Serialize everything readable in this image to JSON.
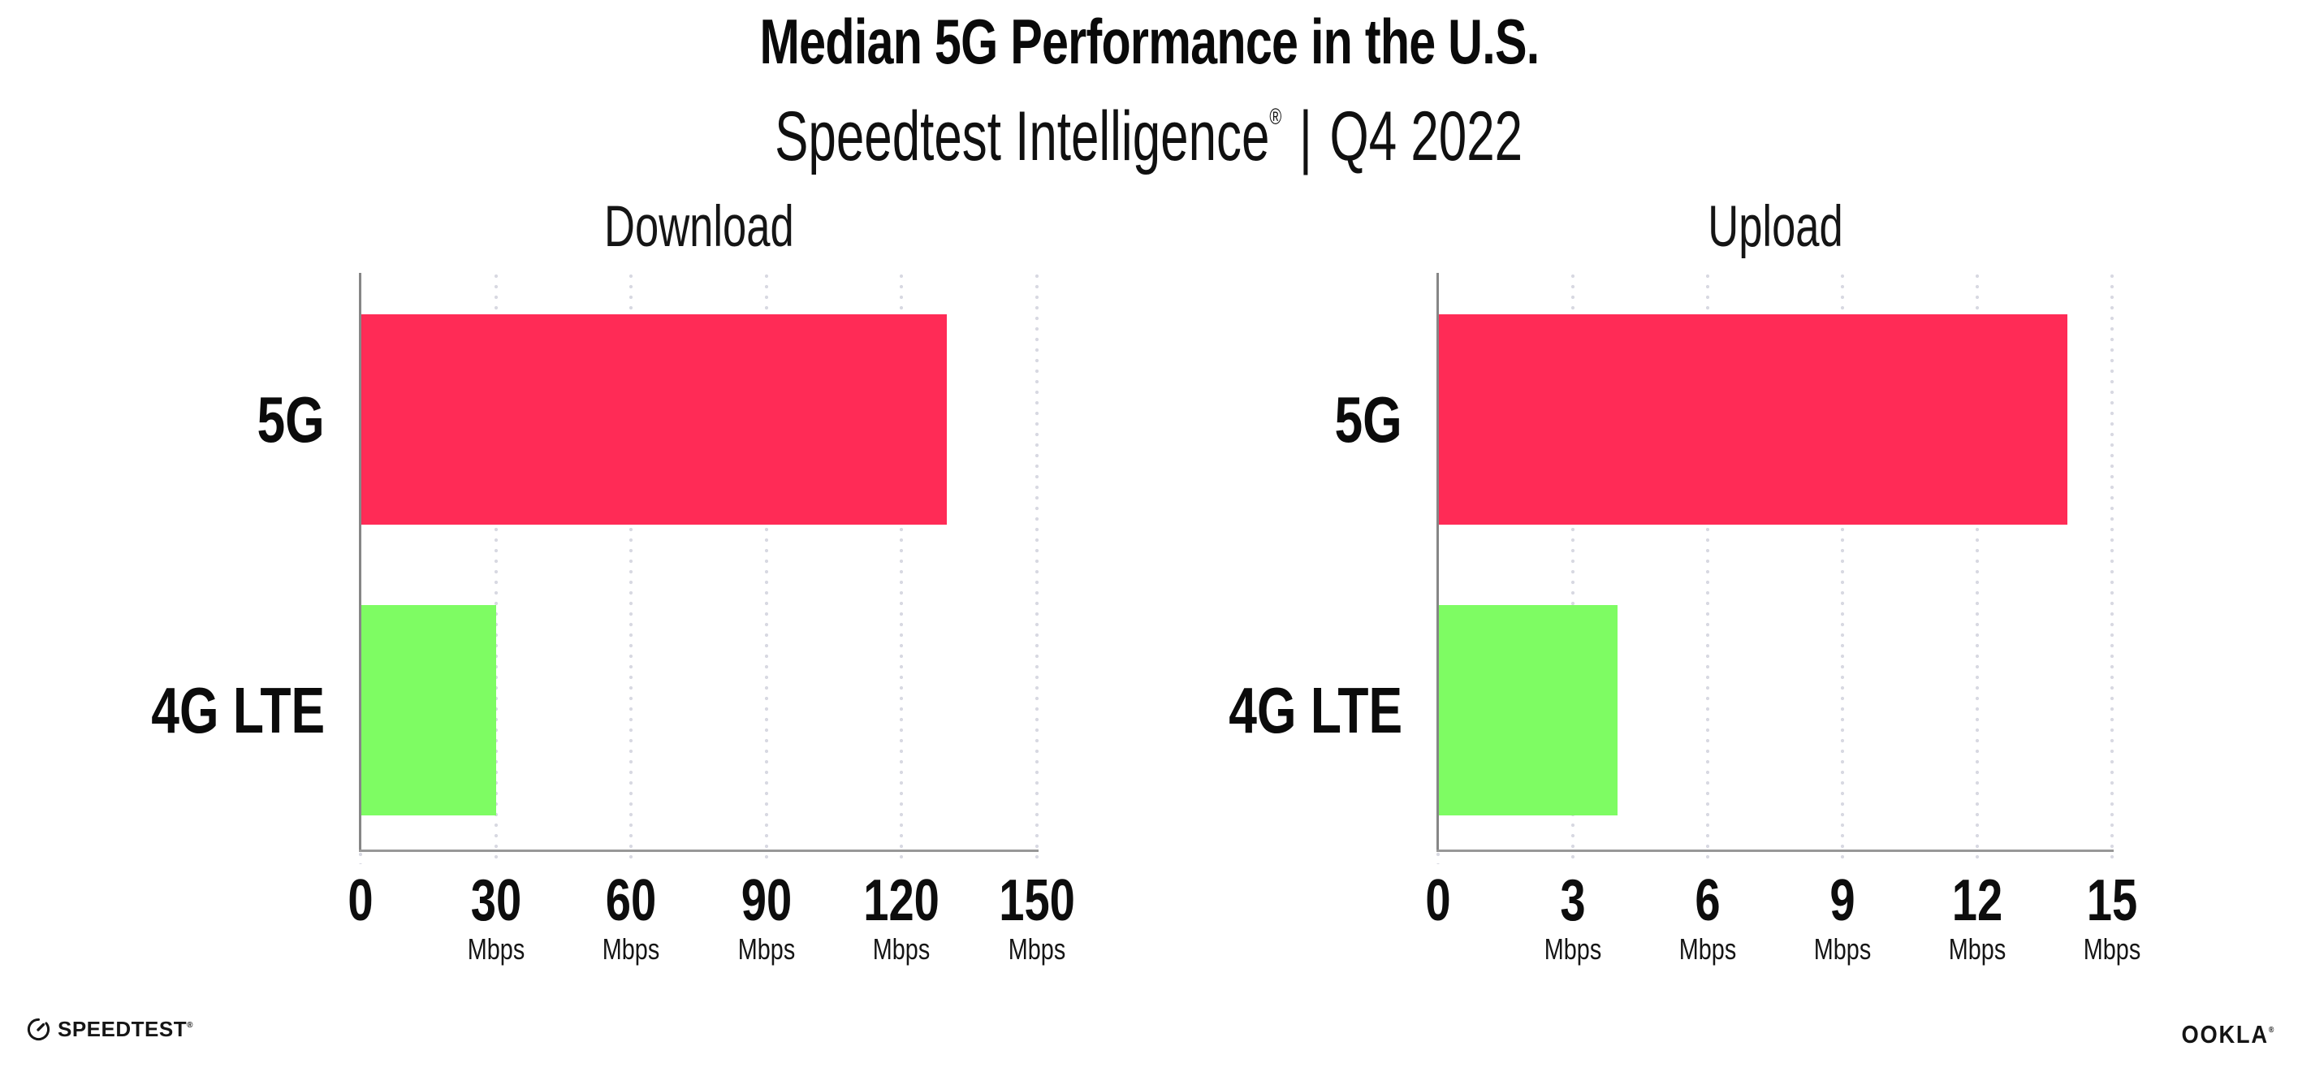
{
  "header": {
    "title": "Median 5G Performance in the U.S.",
    "subtitle": {
      "brand": "Speedtest Intelligence",
      "reg": "®",
      "sep": "|",
      "period": "Q4 2022"
    }
  },
  "chart_data": [
    {
      "type": "bar",
      "orientation": "horizontal",
      "title": "Download",
      "categories": [
        "5G",
        "4G LTE"
      ],
      "values": [
        130,
        30
      ],
      "unit": "Mbps",
      "xlim": [
        0,
        150
      ],
      "xticks": [
        0,
        30,
        60,
        90,
        120,
        150
      ],
      "xtick_unit_label": "Mbps",
      "bar_colors": [
        "#ff2b56",
        "#7efc63"
      ],
      "grid": "vertical-dotted",
      "legend": "none"
    },
    {
      "type": "bar",
      "orientation": "horizontal",
      "title": "Upload",
      "categories": [
        "5G",
        "4G LTE"
      ],
      "values": [
        14,
        4
      ],
      "unit": "Mbps",
      "xlim": [
        0,
        15
      ],
      "xticks": [
        0,
        3,
        6,
        9,
        12,
        15
      ],
      "xtick_unit_label": "Mbps",
      "bar_colors": [
        "#ff2b56",
        "#7efc63"
      ],
      "grid": "vertical-dotted",
      "legend": "none"
    }
  ],
  "footer": {
    "speedtest_label": "SPEEDTEST",
    "speedtest_reg": "®",
    "ookla_label": "OOKLA",
    "ookla_reg": "®"
  },
  "colors": {
    "bar_5g": "#ff2b56",
    "bar_4g_lte": "#7efc63",
    "grid_dot": "#d8d9e2",
    "axis_vertical": "#868686",
    "axis_horizontal": "#989898",
    "text": "#0b0b0b",
    "background": "#ffffff"
  }
}
